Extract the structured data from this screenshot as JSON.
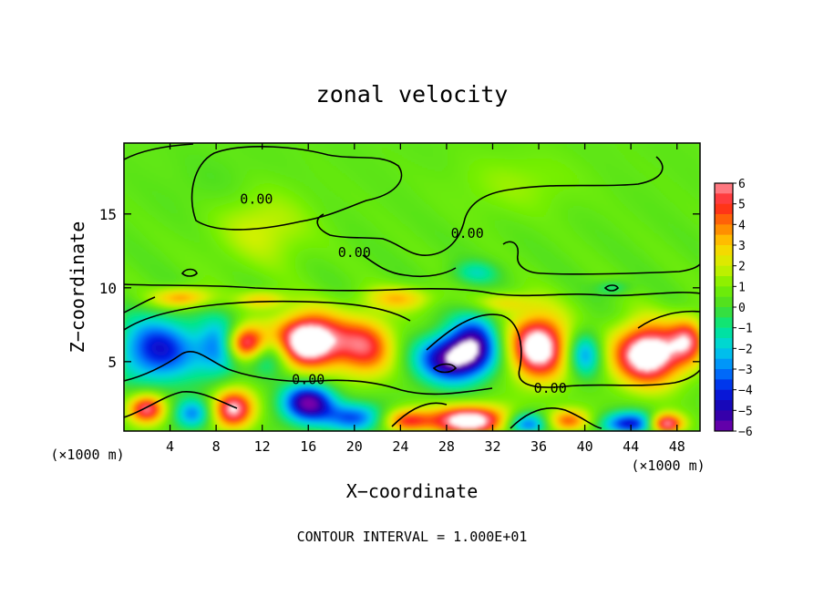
{
  "chart_data": {
    "type": "heatmap",
    "title": "zonal velocity",
    "xlabel": "X−coordinate",
    "ylabel": "Z−coordinate",
    "x_unit": "(×1000 m)",
    "y_unit": "(×1000 m)",
    "footer": "CONTOUR INTERVAL = 1.000E+01",
    "xlim": [
      0,
      50
    ],
    "ylim": [
      0.3,
      19.8
    ],
    "xticks": [
      4,
      8,
      12,
      16,
      20,
      24,
      28,
      32,
      36,
      40,
      44,
      48
    ],
    "yticks": [
      5,
      10,
      15
    ],
    "colorbar": {
      "range": [
        -6,
        6
      ],
      "ticks": [
        6,
        5,
        4,
        3,
        2,
        1,
        0,
        -1,
        -2,
        -3,
        -4,
        -5,
        -6
      ],
      "tick_labels": [
        "6",
        "5",
        "4",
        "3",
        "2",
        "1",
        "0",
        "−1",
        "−2",
        "−3",
        "−4",
        "−5",
        "−6"
      ]
    },
    "contour_labels": [
      {
        "text": "0.00",
        "x": 11.5,
        "z": 16.0
      },
      {
        "text": "0.00",
        "x": 20.0,
        "z": 12.4
      },
      {
        "text": "0.00",
        "x": 29.8,
        "z": 13.7
      },
      {
        "text": "0.00",
        "x": 16.0,
        "z": 3.8
      },
      {
        "text": "0.00",
        "x": 37.0,
        "z": 3.2
      }
    ],
    "field": {
      "background": 0.5,
      "blobs": [
        {
          "x": 3.0,
          "z": 5.8,
          "rx": 3.5,
          "rz": 2.2,
          "v": -4.8
        },
        {
          "x": 8.5,
          "z": 6.0,
          "rx": 2.0,
          "rz": 1.8,
          "v": -4.0
        },
        {
          "x": 12.5,
          "z": 5.5,
          "rx": 2.0,
          "rz": 1.4,
          "v": -3.0
        },
        {
          "x": 10.5,
          "z": 6.2,
          "rx": 1.8,
          "rz": 1.2,
          "v": 7.0
        },
        {
          "x": 16.0,
          "z": 6.4,
          "rx": 3.0,
          "rz": 1.8,
          "v": 8.0
        },
        {
          "x": 21.0,
          "z": 6.0,
          "rx": 2.5,
          "rz": 2.0,
          "v": 4.5
        },
        {
          "x": 16.0,
          "z": 2.2,
          "rx": 2.2,
          "rz": 1.3,
          "v": -6.5
        },
        {
          "x": 28.5,
          "z": 5.2,
          "rx": 3.0,
          "rz": 1.6,
          "v": -6.5
        },
        {
          "x": 30.5,
          "z": 6.5,
          "rx": 2.0,
          "rz": 1.8,
          "v": -4.0
        },
        {
          "x": 36.0,
          "z": 6.0,
          "rx": 2.5,
          "rz": 2.2,
          "v": 7.0
        },
        {
          "x": 40.0,
          "z": 5.5,
          "rx": 1.5,
          "rz": 1.5,
          "v": -3.5
        },
        {
          "x": 45.5,
          "z": 5.5,
          "rx": 3.0,
          "rz": 2.0,
          "v": 7.5
        },
        {
          "x": 49.0,
          "z": 6.5,
          "rx": 1.5,
          "rz": 1.5,
          "v": 4.0
        },
        {
          "x": 2.0,
          "z": 1.8,
          "rx": 1.6,
          "rz": 1.0,
          "v": 5.5
        },
        {
          "x": 9.5,
          "z": 1.8,
          "rx": 1.8,
          "rz": 1.3,
          "v": 6.0
        },
        {
          "x": 6.0,
          "z": 1.5,
          "rx": 1.6,
          "rz": 1.0,
          "v": -3.5
        },
        {
          "x": 20.0,
          "z": 1.2,
          "rx": 2.5,
          "rz": 1.0,
          "v": -4.0
        },
        {
          "x": 24.5,
          "z": 1.0,
          "rx": 2.0,
          "rz": 0.8,
          "v": 4.0
        },
        {
          "x": 30.0,
          "z": 1.0,
          "rx": 3.5,
          "rz": 1.0,
          "v": 7.0
        },
        {
          "x": 35.0,
          "z": 0.8,
          "rx": 2.0,
          "rz": 0.8,
          "v": -4.5
        },
        {
          "x": 38.5,
          "z": 1.0,
          "rx": 2.0,
          "rz": 0.8,
          "v": 4.0
        },
        {
          "x": 44.0,
          "z": 0.8,
          "rx": 2.5,
          "rz": 0.8,
          "v": -5.0
        },
        {
          "x": 47.0,
          "z": 0.8,
          "rx": 1.5,
          "rz": 0.7,
          "v": 6.5
        },
        {
          "x": 5.0,
          "z": 9.3,
          "rx": 2.5,
          "rz": 0.7,
          "v": 3.5
        },
        {
          "x": 12.0,
          "z": 9.2,
          "rx": 2.0,
          "rz": 0.6,
          "v": 2.5
        },
        {
          "x": 24.0,
          "z": 9.3,
          "rx": 3.0,
          "rz": 0.8,
          "v": 2.5
        },
        {
          "x": 33.0,
          "z": 9.0,
          "rx": 2.5,
          "rz": 0.7,
          "v": 2.0
        },
        {
          "x": 30.5,
          "z": 11.0,
          "rx": 2.0,
          "rz": 0.8,
          "v": -1.8
        },
        {
          "x": 42.5,
          "z": 10.0,
          "rx": 1.5,
          "rz": 0.5,
          "v": -1.5
        },
        {
          "x": 12.0,
          "z": 14.0,
          "rx": 4.0,
          "rz": 2.5,
          "v": 1.5
        },
        {
          "x": 34.0,
          "z": 17.0,
          "rx": 5.0,
          "rz": 2.0,
          "v": 0.8
        },
        {
          "x": 8.0,
          "z": 17.0,
          "rx": 4.0,
          "rz": 2.0,
          "v": -0.3
        }
      ]
    }
  }
}
